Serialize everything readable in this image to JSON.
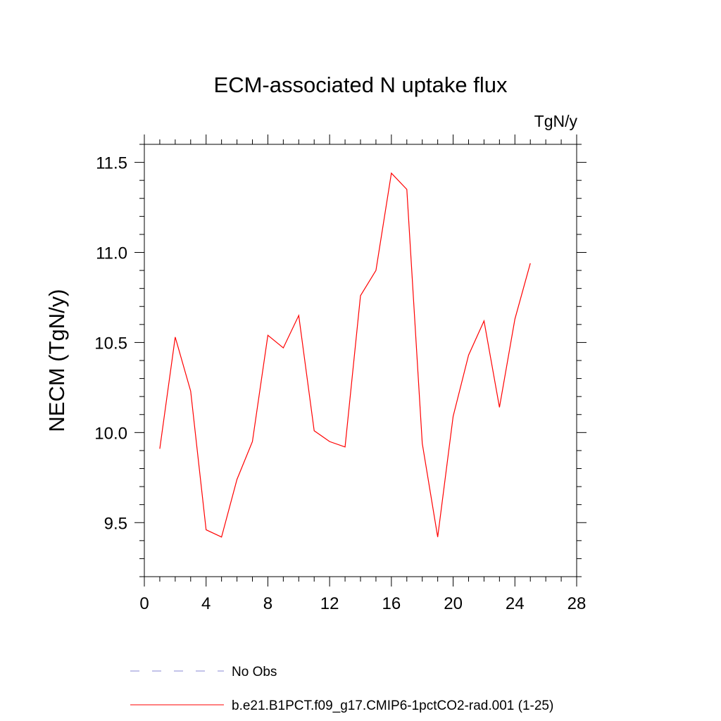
{
  "chart_data": {
    "type": "line",
    "title": "ECM-associated N uptake flux",
    "units": "TgN/y",
    "ylabel": "NECM  (TgN/y)",
    "xlabel": "",
    "xlim": [
      0,
      28
    ],
    "ylim": [
      9.2,
      11.6
    ],
    "x_ticks": [
      0,
      4,
      8,
      12,
      16,
      20,
      24,
      28
    ],
    "x_tick_labels": [
      "0",
      "4",
      "8",
      "12",
      "16",
      "20",
      "24",
      "28"
    ],
    "x_minor_step": 1,
    "y_ticks": [
      9.5,
      10.0,
      10.5,
      11.0,
      11.5
    ],
    "y_tick_labels": [
      "9.5",
      "10.0",
      "10.5",
      "11.0",
      "11.5"
    ],
    "y_minor_step": 0.1,
    "grid": false,
    "series": [
      {
        "name": "b.e21.B1PCT.f09_g17.CMIP6-1pctCO2-rad.001 (1-25)",
        "color": "#ff0000",
        "style": "solid",
        "x": [
          1,
          2,
          3,
          4,
          5,
          6,
          7,
          8,
          9,
          10,
          11,
          12,
          13,
          14,
          15,
          16,
          17,
          18,
          19,
          20,
          21,
          22,
          23,
          24,
          25
        ],
        "y": [
          9.91,
          10.53,
          10.23,
          9.46,
          9.42,
          9.74,
          9.95,
          10.54,
          10.47,
          10.65,
          10.01,
          9.95,
          9.92,
          10.76,
          10.9,
          11.44,
          11.35,
          9.94,
          9.42,
          10.09,
          10.43,
          10.62,
          10.14,
          10.63,
          10.94
        ]
      }
    ],
    "legend": [
      {
        "label": "No Obs",
        "color": "#8a8ad6",
        "style": "dashed"
      },
      {
        "label": "b.e21.B1PCT.f09_g17.CMIP6-1pctCO2-rad.001 (1-25)",
        "color": "#ff0000",
        "style": "solid"
      }
    ],
    "legend_position": "bottom"
  }
}
